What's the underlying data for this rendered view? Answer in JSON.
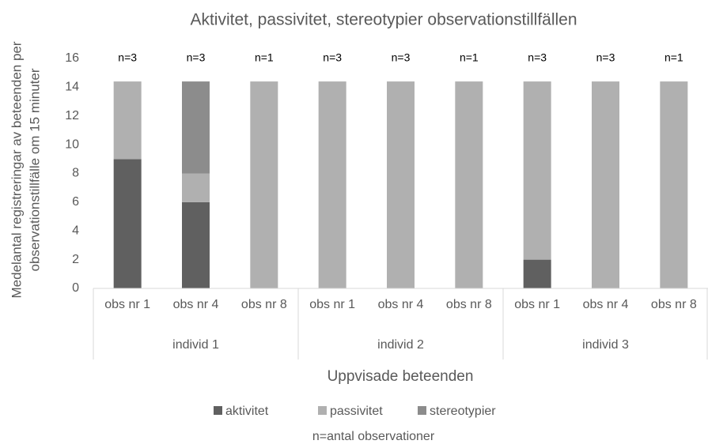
{
  "chart_data": {
    "type": "stacked_bar",
    "title": "Aktivitet, passivitet, stereotypier observationstillfällen",
    "ylabel": [
      "Medelantal registreringar av beteenden per",
      "observationstillfälle om 15 minuter"
    ],
    "xlabel": "Uppvisade beteenden",
    "categories": [
      "obs nr 1",
      "obs nr 4",
      "obs nr 8",
      "obs nr 1",
      "obs nr 4",
      "obs nr 8",
      "obs nr 1",
      "obs nr 4",
      "obs nr 8"
    ],
    "groups": [
      "individ 1",
      "individ 2",
      "individ 3"
    ],
    "annotations": [
      "n=3",
      "n=3",
      "n=1",
      "n=3",
      "n=3",
      "n=1",
      "n=3",
      "n=3",
      "n=1"
    ],
    "series": [
      {
        "name": "aktivitet",
        "color": "#606060",
        "values": [
          9,
          6,
          0,
          0,
          0,
          0,
          2,
          0,
          0
        ]
      },
      {
        "name": "passivitet",
        "color": "#b0b0b0",
        "values": [
          5.4,
          2,
          14.4,
          14.4,
          14.4,
          14.4,
          12.4,
          14.4,
          14.4
        ]
      },
      {
        "name": "stereotypier",
        "color": "#8c8c8c",
        "values": [
          0,
          6.4,
          0,
          0,
          0,
          0,
          0,
          0,
          0
        ]
      }
    ],
    "ylim": [
      0,
      16
    ],
    "yticks": [
      0,
      2,
      4,
      6,
      8,
      10,
      12,
      14,
      16
    ],
    "legend": "bottom",
    "footnote": "n=antal observationer"
  }
}
